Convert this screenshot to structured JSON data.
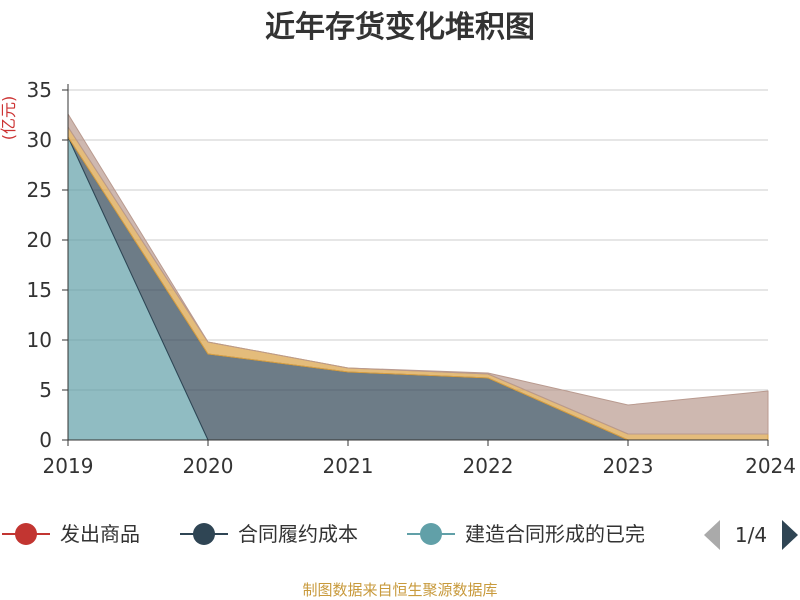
{
  "chart_data": {
    "type": "area",
    "stacked": true,
    "title": "近年存货变化堆积图",
    "unit_label": "亿元",
    "x": [
      "2019",
      "2020",
      "2021",
      "2022",
      "2023",
      "2024"
    ],
    "ylim": [
      0,
      35
    ],
    "yticks": [
      "0",
      "5",
      "10",
      "15",
      "20",
      "25",
      "30",
      "35"
    ],
    "grid": true,
    "legend_position": "bottom",
    "series": [
      {
        "name": "建造合同形成的已完",
        "color": "#61a0a8",
        "values": [
          30.3,
          0,
          0,
          0,
          0,
          0
        ]
      },
      {
        "name": "合同履约成本",
        "color": "#2f4554",
        "values": [
          0,
          8.6,
          6.8,
          6.2,
          0,
          0
        ]
      },
      {
        "name": "",
        "color": "#d9a043",
        "values": [
          1.0,
          1.2,
          0.4,
          0.4,
          0.6,
          0.6
        ]
      },
      {
        "name": "",
        "color": "#b99a8f",
        "values": [
          1.3,
          0,
          0,
          0.1,
          2.9,
          4.3
        ]
      }
    ],
    "legend": [
      {
        "name": "发出商品",
        "color": "#c23531"
      },
      {
        "name": "合同履约成本",
        "color": "#2f4554"
      },
      {
        "name": "建造合同形成的已完",
        "color": "#61a0a8"
      }
    ],
    "pager": "1/4",
    "source": "制图数据来自恒生聚源数据库"
  }
}
